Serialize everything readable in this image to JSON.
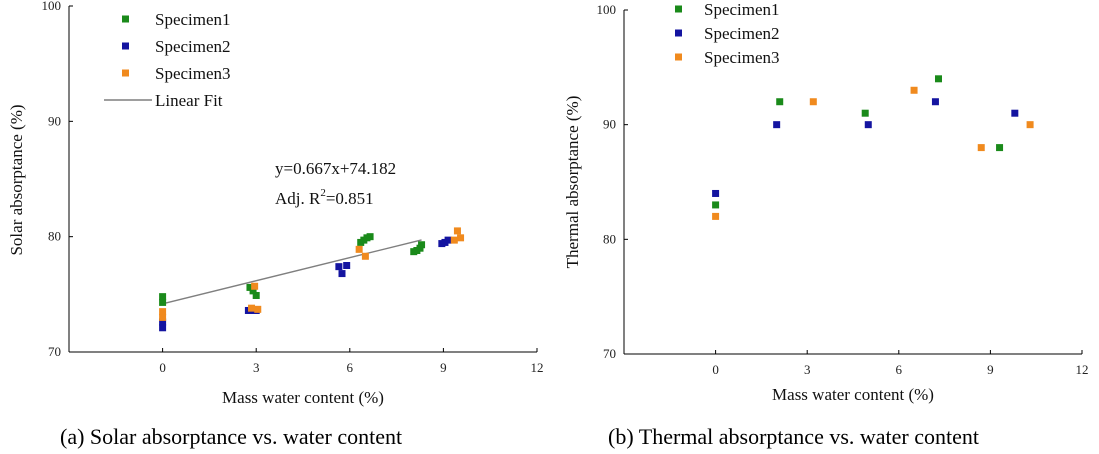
{
  "chart_data": [
    {
      "type": "scatter",
      "caption": "(a) Solar absorptance vs. water content",
      "xlabel": "Mass water content (%)",
      "ylabel": "Solar absorptance (%)",
      "xlim": [
        -3,
        12
      ],
      "ylim": [
        70,
        100
      ],
      "xticks": [
        0,
        3,
        6,
        9,
        12
      ],
      "yticks": [
        70,
        80,
        90,
        100
      ],
      "legend_position": "top-left",
      "series": [
        {
          "name": "Specimen1",
          "color": "#1a8a1a",
          "x": [
            0,
            0,
            2.8,
            2.9,
            3.0,
            6.35,
            6.45,
            6.55,
            6.65,
            8.05,
            8.15,
            8.25,
            8.3
          ],
          "y": [
            74.3,
            74.8,
            75.6,
            75.3,
            74.9,
            79.5,
            79.7,
            79.9,
            80.0,
            78.7,
            78.8,
            79.0,
            79.3
          ]
        },
        {
          "name": "Specimen2",
          "color": "#1414a0",
          "x": [
            0,
            0,
            2.75,
            2.85,
            2.95,
            3.0,
            5.65,
            5.75,
            5.9,
            8.95,
            9.05,
            9.15
          ],
          "y": [
            72.1,
            72.6,
            73.6,
            73.6,
            73.6,
            73.6,
            77.4,
            76.8,
            77.5,
            79.4,
            79.5,
            79.7
          ]
        },
        {
          "name": "Specimen3",
          "color": "#f08a1e",
          "x": [
            0,
            0,
            2.85,
            2.95,
            3.05,
            6.3,
            6.5,
            9.35,
            9.45,
            9.55
          ],
          "y": [
            73.0,
            73.5,
            73.8,
            75.7,
            73.7,
            78.9,
            78.3,
            79.7,
            80.5,
            79.9
          ]
        }
      ],
      "fit": {
        "name": "Linear Fit",
        "slope": 0.667,
        "intercept": 74.182,
        "x_range": [
          0,
          8.3
        ],
        "color": "#7f7f7f"
      },
      "annotation": {
        "equation": "y=0.667x+74.182",
        "r2_prefix": "Adj. R",
        "r2_sup": "2",
        "r2_value": "=0.851"
      }
    },
    {
      "type": "scatter",
      "caption": "(b) Thermal absorptance vs. water content",
      "xlabel": "Mass water content (%)",
      "ylabel": "Thermal absorptance (%)",
      "xlim": [
        -3,
        12
      ],
      "ylim": [
        70,
        100
      ],
      "xticks": [
        0,
        3,
        6,
        9,
        12
      ],
      "yticks": [
        70,
        80,
        90,
        100
      ],
      "legend_position": "top-left",
      "series": [
        {
          "name": "Specimen1",
          "color": "#1a8a1a",
          "x": [
            0,
            2.1,
            4.9,
            7.3,
            9.3
          ],
          "y": [
            83,
            92,
            91,
            94,
            88
          ]
        },
        {
          "name": "Specimen2",
          "color": "#1414a0",
          "x": [
            0,
            2.0,
            5.0,
            7.2,
            9.8
          ],
          "y": [
            84,
            90,
            90,
            92,
            91
          ]
        },
        {
          "name": "Specimen3",
          "color": "#f08a1e",
          "x": [
            0,
            3.2,
            6.5,
            8.7,
            10.3
          ],
          "y": [
            82,
            92,
            93,
            88,
            90
          ]
        }
      ]
    }
  ]
}
